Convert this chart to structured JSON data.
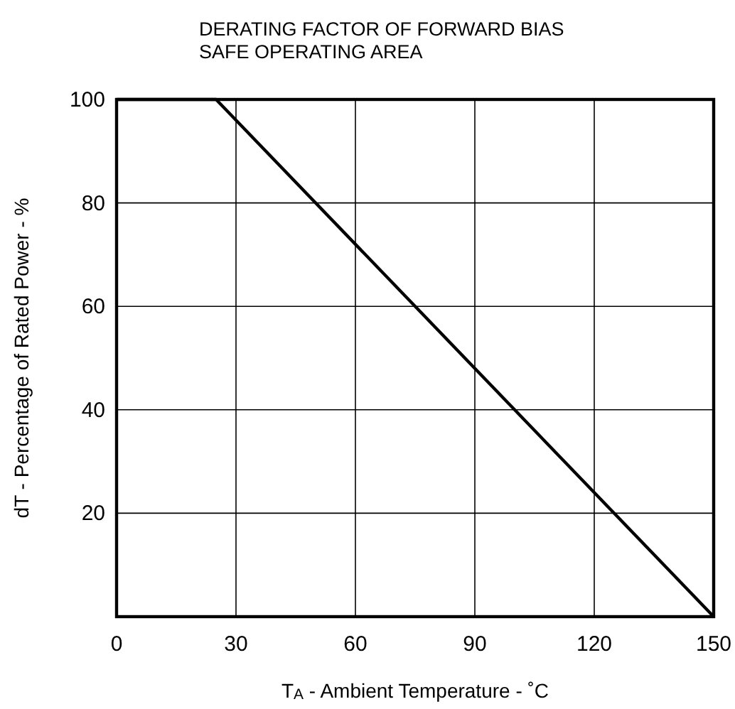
{
  "chart_data": {
    "type": "line",
    "title": "DERATING FACTOR OF FORWARD BIAS SAFE OPERATING AREA",
    "xlabel": "T$_{A}$ - Ambient Temperature - ˚C",
    "ylabel": "dT - Percentage of Rated Power - %",
    "x": [
      0,
      25,
      150
    ],
    "series": [
      {
        "color": "#000000",
        "values": [
          100,
          100,
          0
        ]
      }
    ],
    "xlim": [
      0,
      150
    ],
    "xticks": [
      0,
      30,
      60,
      90,
      120,
      150
    ],
    "ylim": [
      0,
      100
    ],
    "yticks": [
      20,
      40,
      60,
      80,
      100
    ],
    "grid": true,
    "line_style": "solid",
    "marker": "none"
  }
}
